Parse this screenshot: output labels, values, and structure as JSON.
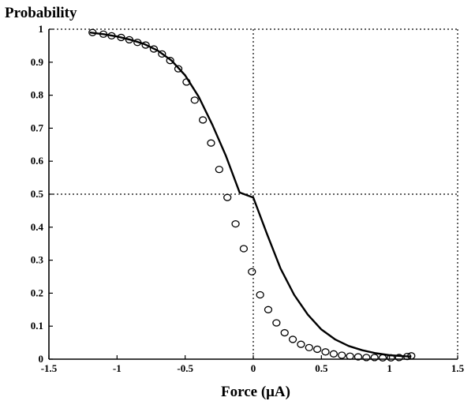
{
  "chart_data": {
    "type": "line",
    "ylabel": "Probability",
    "xlabel": "Force (μA)",
    "xlim": [
      -1.5,
      1.5
    ],
    "ylim": [
      0,
      1
    ],
    "xticks": [
      -1.5,
      -1,
      -0.5,
      0,
      0.5,
      1,
      1.5
    ],
    "xtick_labels": [
      "-1.5",
      "-1",
      "-0.5",
      "0",
      "0.5",
      "1",
      "1.5"
    ],
    "yticks": [
      0,
      0.1,
      0.2,
      0.3,
      0.4,
      0.5,
      0.6,
      0.7,
      0.8,
      0.9,
      1
    ],
    "ytick_labels": [
      "0",
      "0.1",
      "0.2",
      "0.3",
      "0.4",
      "0.5",
      "0.6",
      "0.7",
      "0.8",
      "0.9",
      "1"
    ],
    "reference_lines": {
      "x": 0,
      "y": 0.5,
      "style": "dotted"
    },
    "grid": false,
    "series": [
      {
        "style": "circles",
        "x": [
          -1.18,
          -1.1,
          -1.04,
          -0.97,
          -0.91,
          -0.85,
          -0.79,
          -0.73,
          -0.67,
          -0.61,
          -0.55,
          -0.49,
          -0.43,
          -0.37,
          -0.31,
          -0.25,
          -0.19,
          -0.13,
          -0.07,
          -0.01,
          0.05,
          0.11,
          0.17,
          0.23,
          0.29,
          0.35,
          0.41,
          0.47,
          0.53,
          0.59,
          0.65,
          0.71,
          0.77,
          0.83,
          0.89,
          0.95,
          1.01,
          1.07,
          1.13,
          1.16
        ],
        "y": [
          0.99,
          0.985,
          0.98,
          0.975,
          0.968,
          0.96,
          0.952,
          0.94,
          0.925,
          0.905,
          0.88,
          0.84,
          0.785,
          0.725,
          0.655,
          0.575,
          0.49,
          0.41,
          0.335,
          0.265,
          0.195,
          0.15,
          0.11,
          0.08,
          0.06,
          0.045,
          0.035,
          0.03,
          0.022,
          0.016,
          0.012,
          0.009,
          0.007,
          0.005,
          0.005,
          0.004,
          0.004,
          0.005,
          0.008,
          0.01
        ],
        "x_note": "unused"
      },
      {
        "style": "solid",
        "x": [
          -1.2,
          -1.1,
          -1.0,
          -0.9,
          -0.8,
          -0.7,
          -0.6,
          -0.5,
          -0.4,
          -0.3,
          -0.2,
          -0.1,
          0.0,
          0.1,
          0.2,
          0.3,
          0.4,
          0.5,
          0.6,
          0.7,
          0.8,
          0.9,
          1.0,
          1.1,
          1.16
        ],
        "y": [
          0.99,
          0.985,
          0.978,
          0.968,
          0.955,
          0.935,
          0.905,
          0.86,
          0.795,
          0.71,
          0.615,
          0.505,
          0.49,
          0.38,
          0.275,
          0.195,
          0.135,
          0.09,
          0.06,
          0.04,
          0.027,
          0.018,
          0.012,
          0.009,
          0.008
        ]
      }
    ]
  }
}
